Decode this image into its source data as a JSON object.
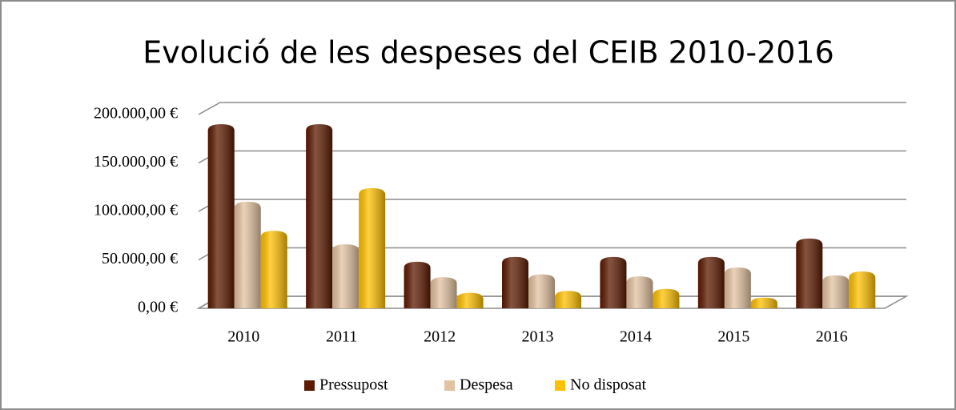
{
  "chart_data": {
    "type": "bar3d",
    "title": "Evolució de les despeses del CEIB 2010-2016",
    "categories": [
      "2010",
      "2011",
      "2012",
      "2013",
      "2014",
      "2015",
      "2016"
    ],
    "series": [
      {
        "name": "Pressupost",
        "color": "#5c1a00",
        "values": [
          190000,
          190000,
          48000,
          53000,
          53000,
          53000,
          72000
        ]
      },
      {
        "name": "Despesa",
        "color": "#e3c2a0",
        "values": [
          110000,
          66000,
          32000,
          35000,
          33000,
          42000,
          34000
        ]
      },
      {
        "name": "No disposat",
        "color": "#ffc000",
        "values": [
          80000,
          124000,
          16000,
          18000,
          20000,
          11000,
          38000
        ]
      }
    ],
    "ylim": [
      0,
      200000
    ],
    "yticks": [
      {
        "value": 0,
        "label": "0,00 €"
      },
      {
        "value": 50000,
        "label": "50.000,00 €"
      },
      {
        "value": 100000,
        "label": "100.000,00 €"
      },
      {
        "value": 150000,
        "label": "150.000,00 €"
      },
      {
        "value": 200000,
        "label": "200.000,00 €"
      }
    ],
    "grid": true,
    "legend": "bottom"
  }
}
